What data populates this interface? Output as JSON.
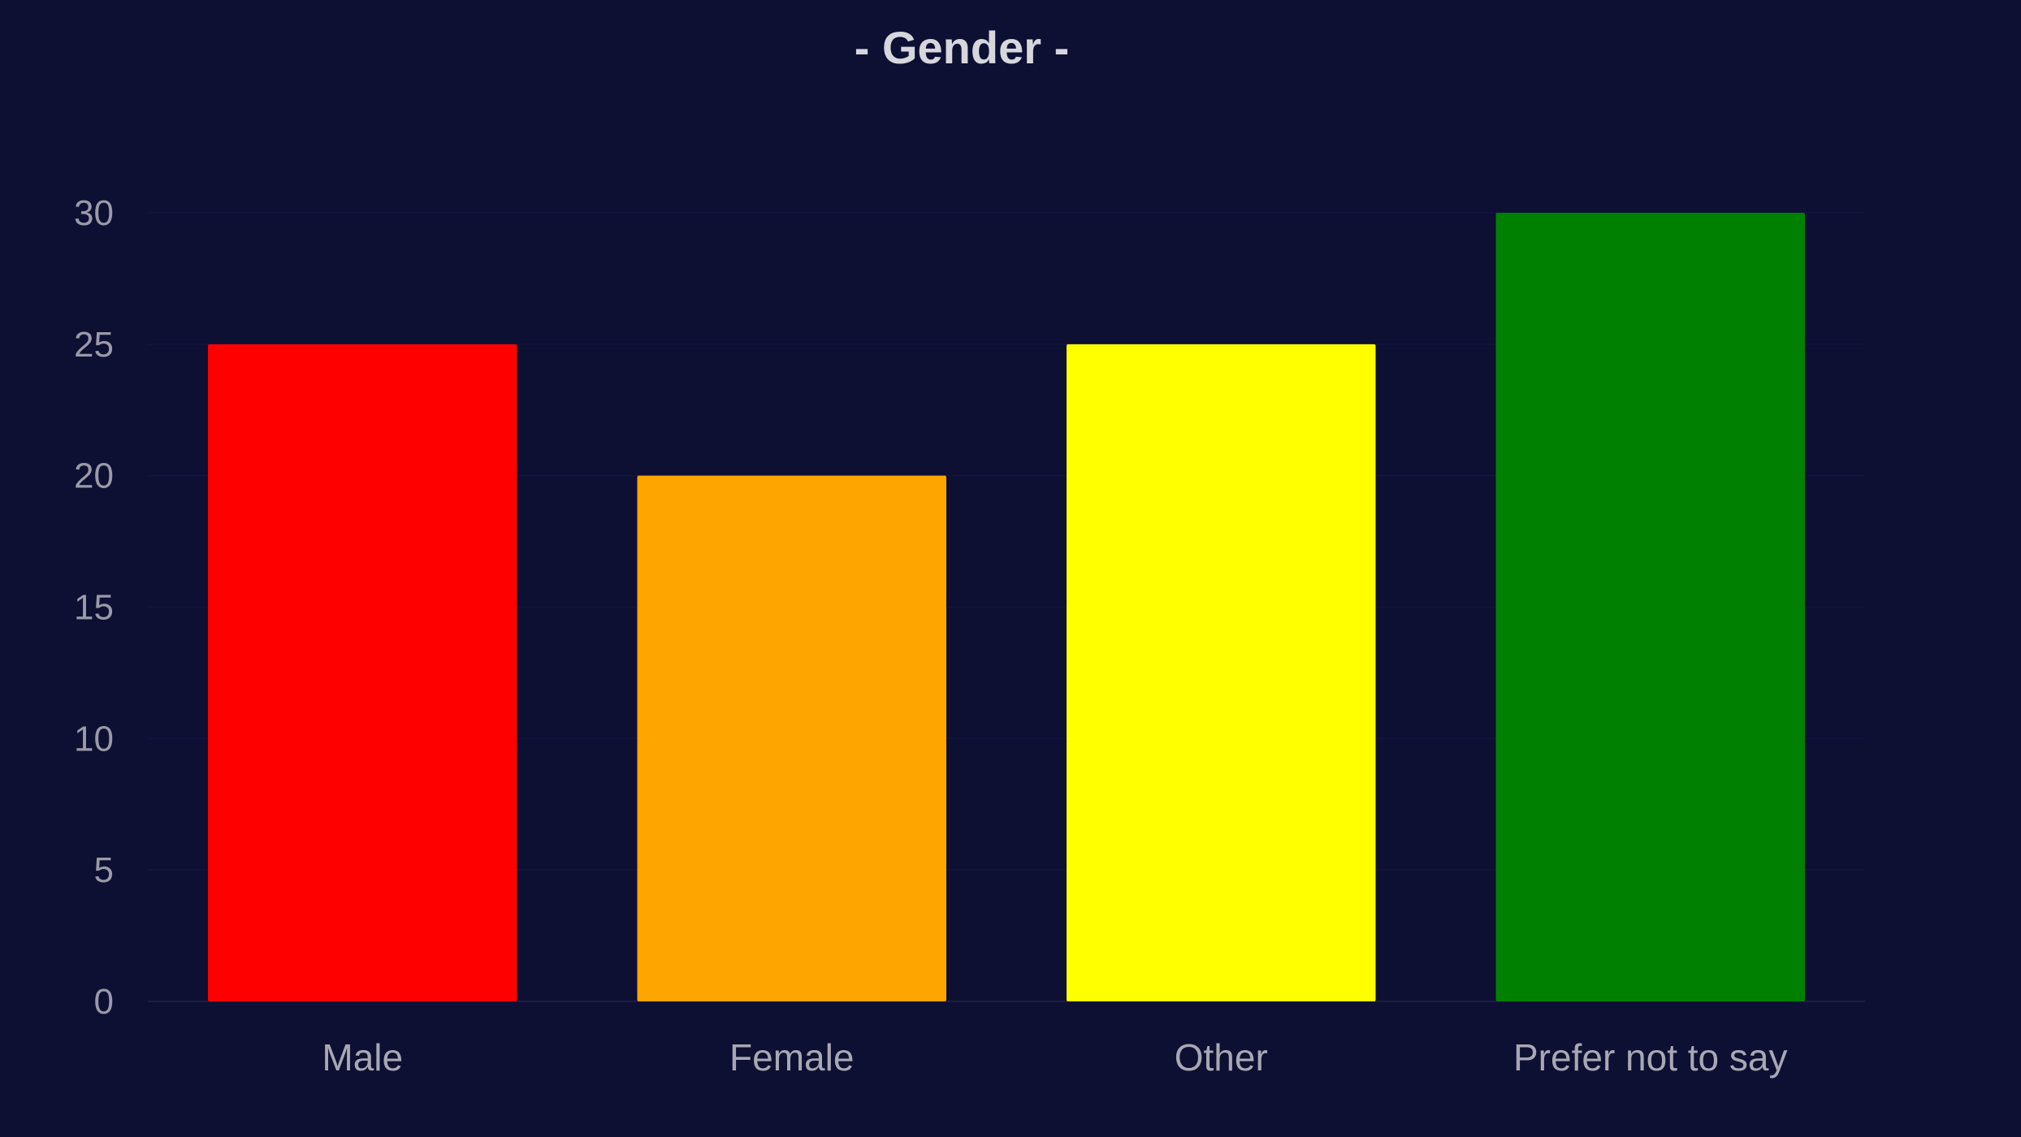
{
  "chart_data": {
    "type": "bar",
    "title": "- Gender -",
    "xlabel": "",
    "ylabel": "",
    "categories": [
      "Male",
      "Female",
      "Other",
      "Prefer not to say"
    ],
    "values": [
      25,
      20,
      25,
      30
    ],
    "colors": [
      "#ff0000",
      "#ffa500",
      "#ffff00",
      "#008000"
    ],
    "ylim": [
      0,
      30
    ],
    "yticks": [
      0,
      5,
      10,
      15,
      20,
      25,
      30
    ],
    "grid": true,
    "legend": "none",
    "background": "#0d0f33"
  }
}
